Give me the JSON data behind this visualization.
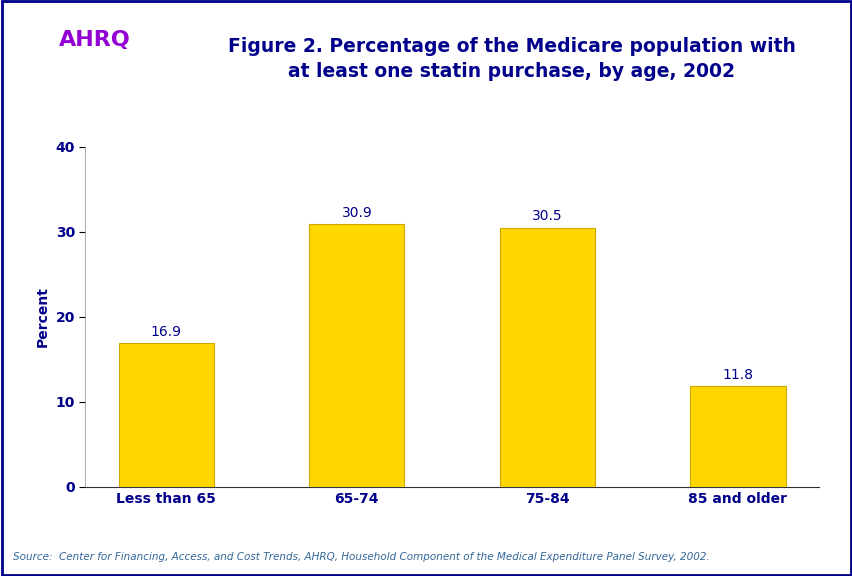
{
  "categories": [
    "Less than 65",
    "65-74",
    "75-84",
    "85 and older"
  ],
  "values": [
    16.9,
    30.9,
    30.5,
    11.8
  ],
  "bar_color": "#FFD700",
  "bar_edgecolor": "#CCA800",
  "ylabel": "Percent",
  "ylim": [
    0,
    40
  ],
  "yticks": [
    0,
    10,
    20,
    30,
    40
  ],
  "title_line1": "Figure 2. Percentage of the Medicare population with",
  "title_line2": "at least one statin purchase, by age, 2002",
  "title_color": "#00008B",
  "axis_label_color": "#00008B",
  "ytick_label_color": "#00008B",
  "xtick_label_color": "#00008B",
  "source_text": "Source:  Center for Financing, Access, and Cost Trends, AHRQ, Household Component of the Medical Expenditure Panel Survey, 2002.",
  "background_color": "#FFFFFF",
  "header_line_color": "#00008B",
  "value_label_color": "#00008B",
  "value_label_fontsize": 10,
  "xlabel_fontsize": 10,
  "ylabel_fontsize": 10,
  "ytick_fontsize": 10,
  "title_fontsize": 13.5,
  "border_color": "#00008B",
  "logo_bg_color": "#1E90FF",
  "logo_text_color": "#FFFFFF"
}
